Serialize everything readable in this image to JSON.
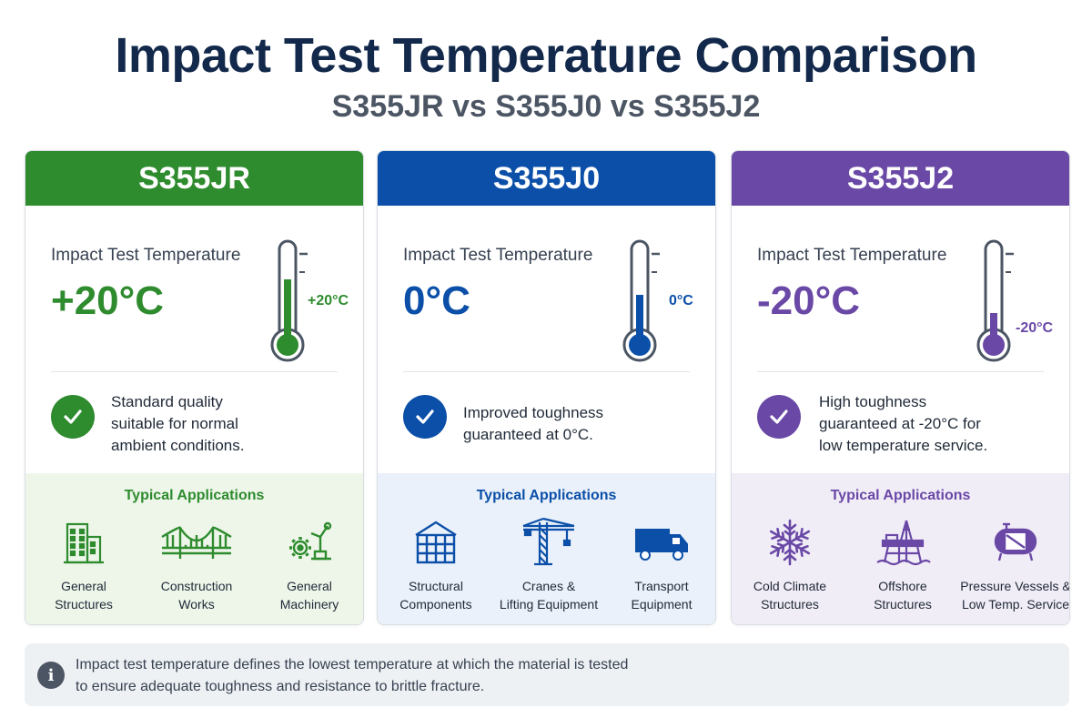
{
  "title": "Impact Test Temperature Comparison",
  "subtitle": "S355JR vs S355J0 vs S355J2",
  "cards": [
    {
      "grade": "S355JR",
      "color": "#2e8b2e",
      "apps_bg": "#eef6ea",
      "temp_label": "Impact Test Temperature",
      "temp_value": "+20°C",
      "thermo_label": "+20°C",
      "thermo_fill": 0.62,
      "desc_lines": [
        "Standard quality",
        "suitable for normal",
        "ambient conditions."
      ],
      "apps_title": "Typical Applications",
      "apps": [
        {
          "icon": "building-icon",
          "line1": "General",
          "line2": "Structures"
        },
        {
          "icon": "bridge-icon",
          "line1": "Construction",
          "line2": "Works"
        },
        {
          "icon": "machinery-icon",
          "line1": "General",
          "line2": "Machinery"
        }
      ]
    },
    {
      "grade": "S355J0",
      "color": "#0b4fa8",
      "apps_bg": "#eaf1fa",
      "temp_label": "Impact Test Temperature",
      "temp_value": "0°C",
      "thermo_label": "0°C",
      "thermo_fill": 0.45,
      "desc_lines": [
        "Improved toughness",
        "guaranteed at 0°C."
      ],
      "apps_title": "Typical Applications",
      "apps": [
        {
          "icon": "structural-frame-icon",
          "line1": "Structural",
          "line2": "Components"
        },
        {
          "icon": "crane-icon",
          "line1": "Cranes &",
          "line2": "Lifting Equipment"
        },
        {
          "icon": "truck-icon",
          "line1": "Transport",
          "line2": "Equipment"
        }
      ]
    },
    {
      "grade": "S355J2",
      "color": "#6a48a6",
      "apps_bg": "#f1edf7",
      "temp_label": "Impact Test Temperature",
      "temp_value": "-20°C",
      "thermo_label": "-20°C",
      "thermo_fill": 0.25,
      "desc_lines": [
        "High toughness",
        "guaranteed at -20°C for",
        "low temperature service."
      ],
      "apps_title": "Typical Applications",
      "apps": [
        {
          "icon": "snowflake-icon",
          "line1": "Cold Climate",
          "line2": "Structures"
        },
        {
          "icon": "offshore-platform-icon",
          "line1": "Offshore",
          "line2": "Structures"
        },
        {
          "icon": "pressure-vessel-icon",
          "line1": "Pressure Vessels &",
          "line2": "Low Temp. Service"
        }
      ]
    }
  ],
  "note": {
    "icon": "info-icon",
    "icon_glyph": "i",
    "line1": "Impact test temperature defines the lowest temperature at which the material is tested",
    "line2": "to ensure adequate toughness and resistance to brittle fracture."
  }
}
